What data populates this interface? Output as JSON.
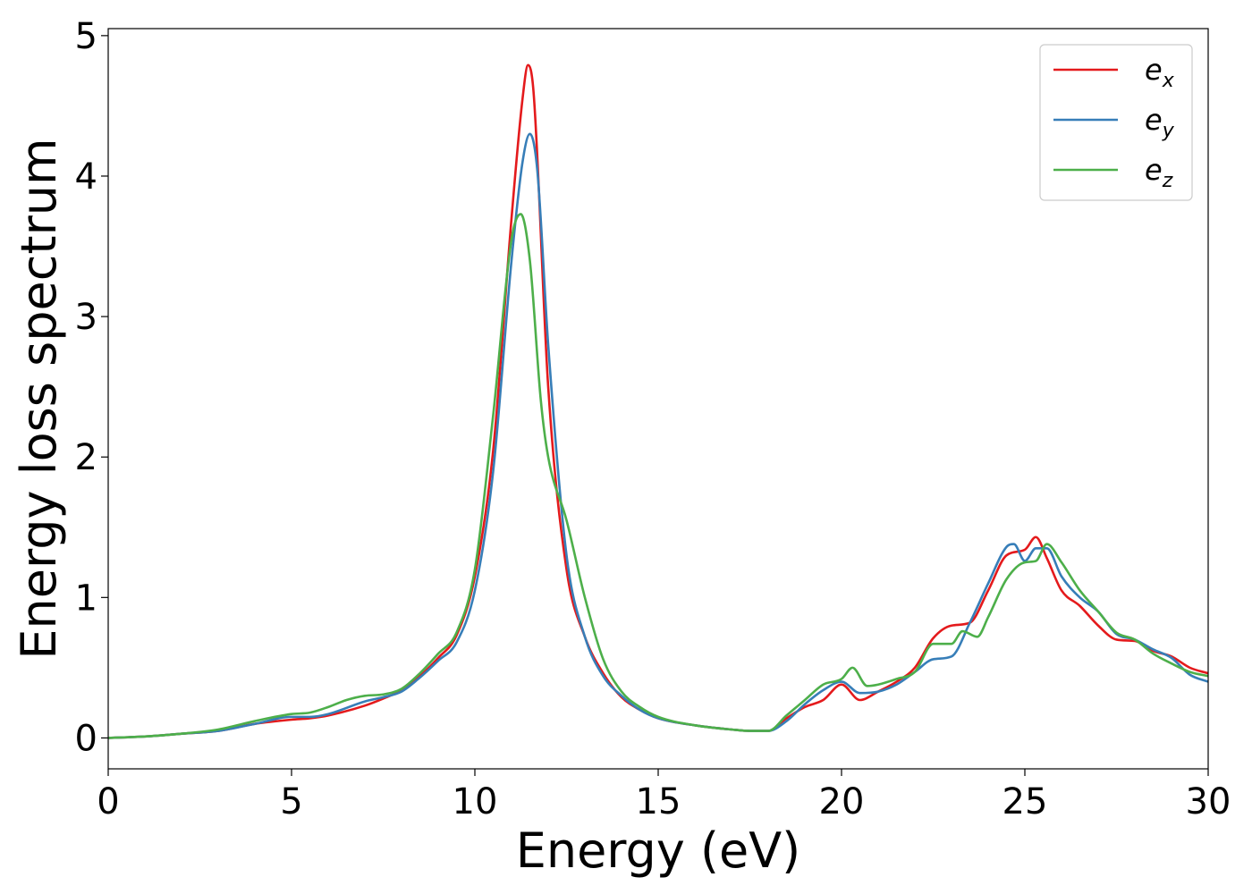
{
  "chart_data": {
    "type": "line",
    "xlabel": "Energy (eV)",
    "ylabel": "Energy loss spectrum",
    "xlim": [
      0,
      30
    ],
    "ylim": [
      -0.22,
      5.05
    ],
    "xticks": [
      "0",
      "5",
      "10",
      "15",
      "20",
      "25",
      "30"
    ],
    "yticks": [
      "0",
      "1",
      "2",
      "3",
      "4",
      "5"
    ],
    "grid": false,
    "legend_position": "top-right",
    "series": [
      {
        "name": "e_x",
        "legend_base": "e",
        "legend_sub": "x",
        "color": "#e41a1c",
        "x": [
          0,
          1,
          2,
          3,
          4,
          5,
          5.5,
          6,
          7,
          7.5,
          8,
          8.5,
          9,
          9.5,
          10,
          10.5,
          11,
          11.3,
          11.45,
          11.6,
          12,
          12.5,
          13,
          13.5,
          14,
          14.5,
          15,
          16,
          17,
          17.5,
          18,
          18.5,
          19,
          19.5,
          20,
          20.5,
          21,
          21.5,
          22,
          22.5,
          23,
          23.5,
          24,
          24.5,
          25,
          25.3,
          25.6,
          26,
          26.5,
          27,
          27.5,
          28,
          28.5,
          29,
          29.5,
          30
        ],
        "y": [
          0.0,
          0.01,
          0.03,
          0.05,
          0.1,
          0.13,
          0.14,
          0.16,
          0.23,
          0.28,
          0.34,
          0.44,
          0.57,
          0.73,
          1.15,
          2.05,
          3.7,
          4.55,
          4.79,
          4.6,
          2.5,
          1.2,
          0.72,
          0.46,
          0.29,
          0.2,
          0.14,
          0.09,
          0.06,
          0.05,
          0.05,
          0.14,
          0.22,
          0.27,
          0.38,
          0.27,
          0.33,
          0.4,
          0.5,
          0.71,
          0.8,
          0.82,
          1.05,
          1.3,
          1.34,
          1.43,
          1.28,
          1.05,
          0.94,
          0.8,
          0.7,
          0.69,
          0.62,
          0.58,
          0.5,
          0.46
        ]
      },
      {
        "name": "e_y",
        "legend_base": "e",
        "legend_sub": "y",
        "color": "#377eb8",
        "x": [
          0,
          1,
          2,
          3,
          4,
          5,
          5.5,
          6,
          7,
          7.5,
          8,
          8.5,
          9,
          9.5,
          10,
          10.5,
          11,
          11.3,
          11.5,
          11.7,
          12,
          12.5,
          13,
          13.5,
          14,
          14.5,
          15,
          16,
          17,
          17.5,
          18,
          18.5,
          19,
          19.5,
          20,
          20.5,
          21,
          21.5,
          22,
          22.5,
          23,
          23.5,
          24,
          24.5,
          24.7,
          25,
          25.3,
          25.6,
          26,
          26.5,
          27,
          27.5,
          28,
          28.5,
          29,
          29.5,
          30
        ],
        "y": [
          0.0,
          0.01,
          0.03,
          0.05,
          0.1,
          0.15,
          0.15,
          0.17,
          0.26,
          0.29,
          0.33,
          0.43,
          0.55,
          0.68,
          1.05,
          1.9,
          3.4,
          4.1,
          4.3,
          4.05,
          2.8,
          1.3,
          0.72,
          0.44,
          0.3,
          0.2,
          0.14,
          0.09,
          0.06,
          0.05,
          0.05,
          0.12,
          0.24,
          0.34,
          0.4,
          0.32,
          0.33,
          0.38,
          0.47,
          0.56,
          0.58,
          0.82,
          1.1,
          1.36,
          1.38,
          1.26,
          1.35,
          1.35,
          1.15,
          1.0,
          0.9,
          0.74,
          0.7,
          0.63,
          0.57,
          0.45,
          0.4
        ]
      },
      {
        "name": "e_z",
        "legend_base": "e",
        "legend_sub": "z",
        "color": "#4daf4a",
        "x": [
          0,
          1,
          2,
          3,
          4,
          5,
          5.5,
          6,
          6.5,
          7,
          7.5,
          8,
          8.5,
          9,
          9.5,
          10,
          10.5,
          11,
          11.25,
          11.5,
          11.8,
          12,
          12.5,
          13,
          13.5,
          14,
          14.5,
          15,
          16,
          17,
          17.5,
          18,
          18.5,
          19,
          19.5,
          20,
          20.3,
          20.7,
          21,
          21.5,
          22,
          22.5,
          23,
          23.3,
          23.7,
          24,
          24.5,
          25,
          25.3,
          25.6,
          26,
          26.5,
          27,
          27.5,
          28,
          28.5,
          29,
          29.5,
          30
        ],
        "y": [
          0.0,
          0.01,
          0.03,
          0.06,
          0.12,
          0.17,
          0.18,
          0.22,
          0.27,
          0.3,
          0.31,
          0.35,
          0.46,
          0.6,
          0.75,
          1.2,
          2.3,
          3.55,
          3.73,
          3.4,
          2.4,
          2.0,
          1.55,
          1.0,
          0.56,
          0.33,
          0.22,
          0.15,
          0.09,
          0.06,
          0.05,
          0.05,
          0.16,
          0.27,
          0.38,
          0.42,
          0.5,
          0.37,
          0.38,
          0.42,
          0.47,
          0.67,
          0.67,
          0.76,
          0.72,
          0.86,
          1.13,
          1.25,
          1.26,
          1.38,
          1.25,
          1.05,
          0.9,
          0.75,
          0.7,
          0.6,
          0.53,
          0.47,
          0.44
        ]
      }
    ]
  }
}
